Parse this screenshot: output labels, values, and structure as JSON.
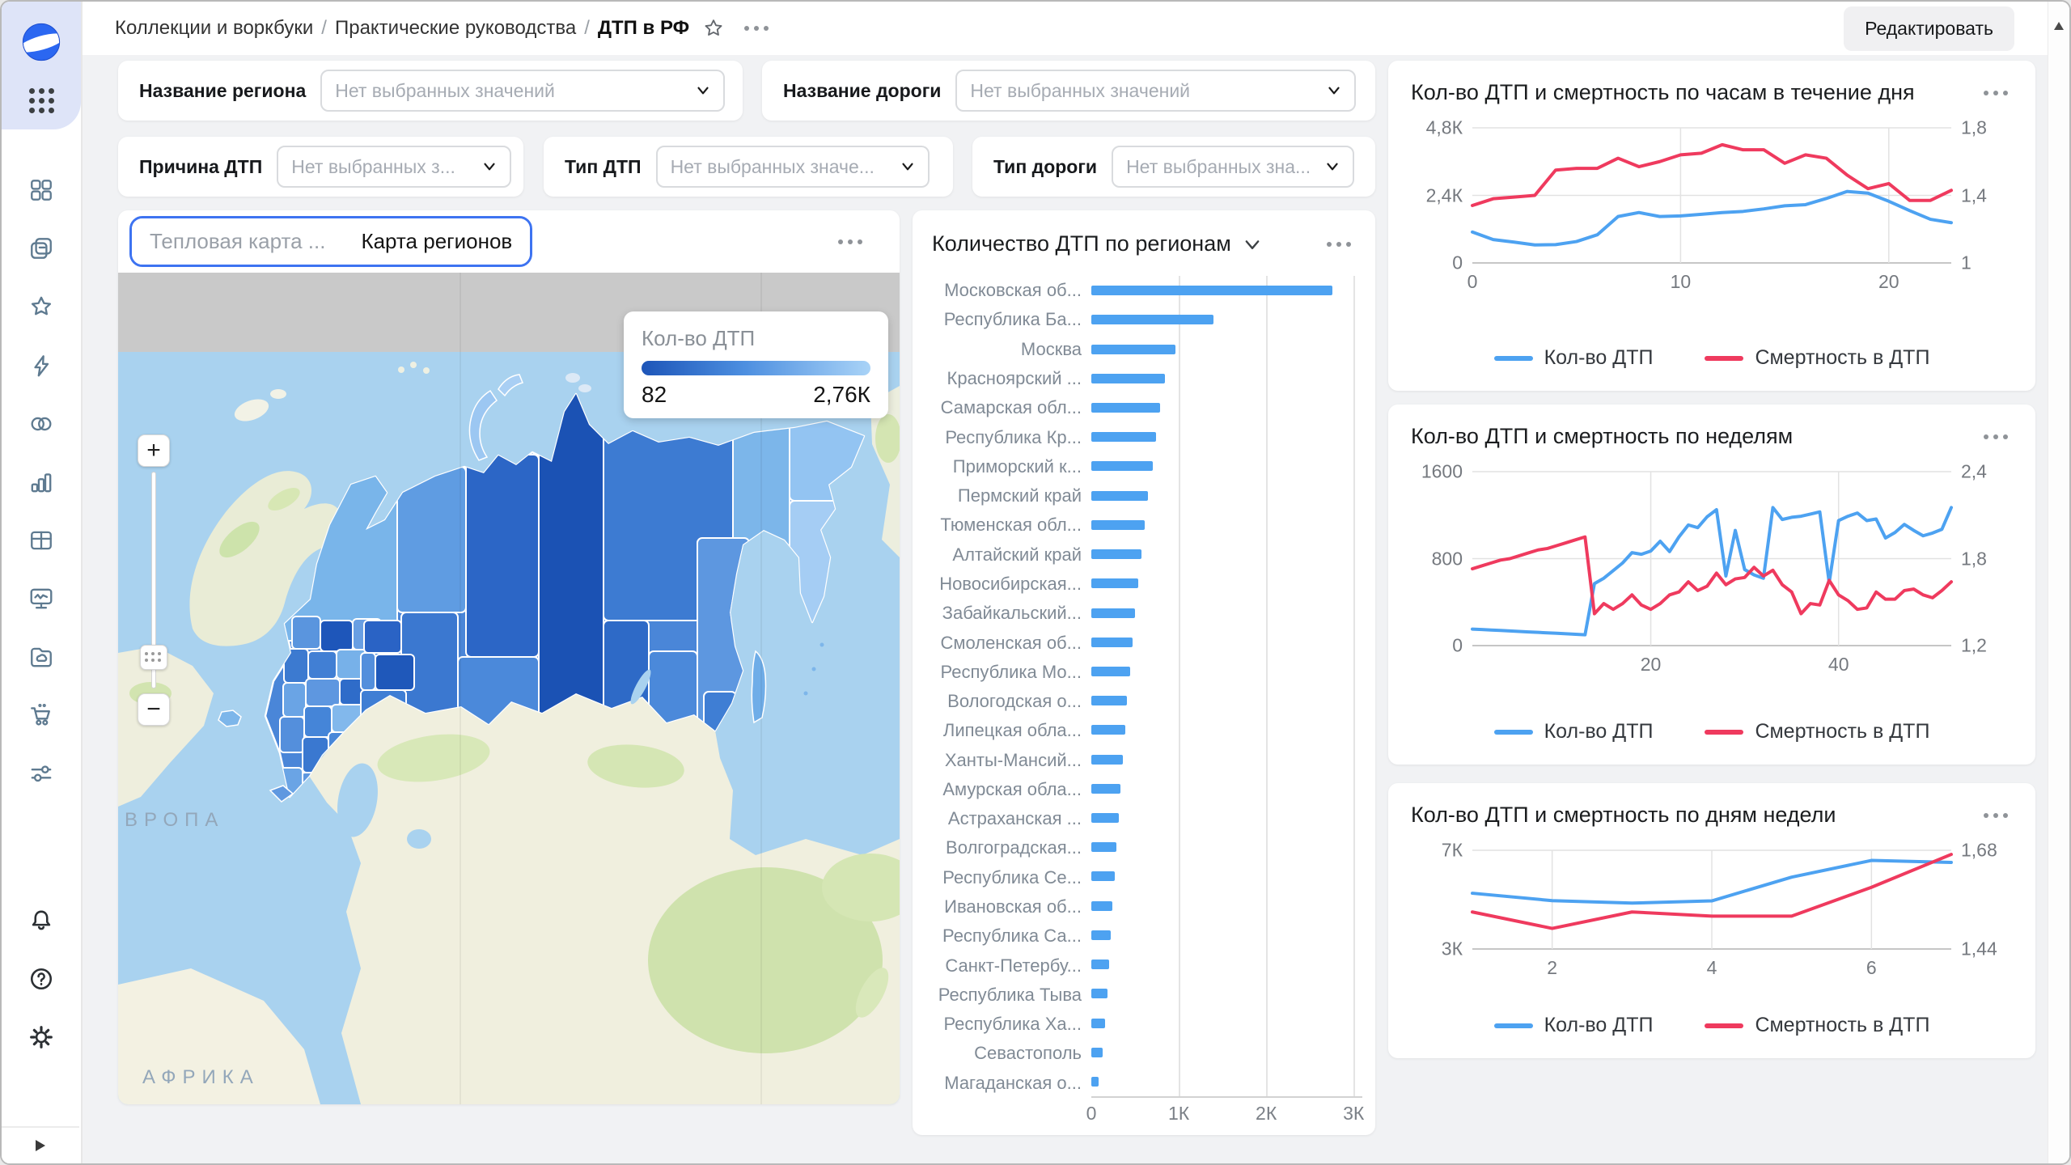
{
  "header": {
    "breadcrumb": [
      "Коллекции и воркбуки",
      "Практические руководства",
      "ДТП в РФ"
    ],
    "separator": "/",
    "edit_button": "Редактировать",
    "icons": [
      "star-icon",
      "more-options-icon"
    ]
  },
  "sidebar": {
    "icons": [
      "datalens-logo",
      "apps-grid-icon",
      "dashboard-icon",
      "collections-icon",
      "favorites-star-icon",
      "lightning-icon",
      "connections-icon",
      "charts-icon",
      "table-icon",
      "monitor-icon",
      "storage-folder-icon",
      "marketplace-cart-icon",
      "services-sliders-icon",
      "bell-icon",
      "help-icon",
      "settings-gear-icon",
      "expand-icon"
    ]
  },
  "filters": [
    {
      "label": "Название региона",
      "placeholder": "Нет выбранных значений"
    },
    {
      "label": "Название дороги",
      "placeholder": "Нет выбранных значений"
    },
    {
      "label": "Причина ДТП",
      "placeholder": "Нет выбранных з..."
    },
    {
      "label": "Тип ДТП",
      "placeholder": "Нет выбранных значе..."
    },
    {
      "label": "Тип дороги",
      "placeholder": "Нет выбранных зна..."
    }
  ],
  "map": {
    "tabs": [
      {
        "label": "Тепловая карта ...",
        "active": false
      },
      {
        "label": "Карта регионов",
        "active": true
      }
    ],
    "legend": {
      "title": "Кол-во ДТП",
      "min": "82",
      "max": "2,76К",
      "gradient": [
        "#1d55b8",
        "#4d8fe0",
        "#a9d3f7"
      ]
    },
    "labels": {
      "europe": "ЕВРОПА",
      "africa": "АФРИКА"
    },
    "controls": {
      "zoom_in": "+",
      "zoom_out": "−"
    }
  },
  "colors": {
    "accent": "#3d73f1",
    "blue": "#4da2f1",
    "red": "#ef3a5e"
  },
  "chart_data": [
    {
      "type": "bar",
      "orientation": "horizontal",
      "title": "Количество ДТП по регионам",
      "categories": [
        "Московская об...",
        "Республика Ба...",
        "Москва",
        "Красноярский ...",
        "Самарская обл...",
        "Республика Кр...",
        "Приморский к...",
        "Пермский край",
        "Тюменская обл...",
        "Алтайский край",
        "Новосибирская...",
        "Забайкальский...",
        "Смоленская об...",
        "Республика Мо...",
        "Вологодская о...",
        "Липецкая обла...",
        "Ханты-Мансий...",
        "Амурская обла...",
        "Астраханская ...",
        "Волгоградская...",
        "Республика Се...",
        "Ивановская об...",
        "Республика Са...",
        "Санкт-Петербу...",
        "Республика Тыва",
        "Республика Ха...",
        "Севастополь",
        "Магаданская о..."
      ],
      "values": [
        2760,
        1400,
        960,
        840,
        790,
        740,
        700,
        650,
        610,
        570,
        540,
        500,
        470,
        440,
        410,
        385,
        360,
        335,
        310,
        290,
        265,
        245,
        225,
        205,
        185,
        160,
        130,
        82
      ],
      "x_ticks": [
        {
          "value": 0,
          "label": "0"
        },
        {
          "value": 1000,
          "label": "1К"
        },
        {
          "value": 2000,
          "label": "2К"
        },
        {
          "value": 3000,
          "label": "3К"
        }
      ],
      "xlim": [
        0,
        3100
      ],
      "bar_color": "#4da2f1",
      "grid": true
    },
    {
      "type": "line",
      "title": "Кол-во ДТП и смертность по часам в течение дня",
      "x_domain": [
        0,
        23
      ],
      "x_ticks": [
        {
          "value": 0,
          "label": "0"
        },
        {
          "value": 10,
          "label": "10"
        },
        {
          "value": 20,
          "label": "20"
        }
      ],
      "x_grid": [
        10,
        20
      ],
      "left_axis": {
        "min": 0,
        "max": 4800,
        "ticks": [
          "4,8К",
          "2,4К",
          "0"
        ]
      },
      "right_axis": {
        "min": 1,
        "max": 1.8,
        "ticks": [
          "1,8",
          "1,4",
          "1"
        ]
      },
      "series": [
        {
          "name": "Кол-во ДТП",
          "axis": "left",
          "color": "#4da2f1",
          "values": [
            1100,
            830,
            740,
            640,
            650,
            760,
            1000,
            1650,
            1790,
            1650,
            1670,
            1730,
            1790,
            1830,
            1920,
            2030,
            2070,
            2290,
            2540,
            2480,
            2190,
            1860,
            1550,
            1430
          ]
        },
        {
          "name": "Смертность в ДТП",
          "axis": "right",
          "color": "#ef3a5e",
          "values": [
            1.34,
            1.38,
            1.39,
            1.4,
            1.55,
            1.56,
            1.56,
            1.62,
            1.57,
            1.6,
            1.64,
            1.65,
            1.7,
            1.67,
            1.67,
            1.59,
            1.64,
            1.62,
            1.52,
            1.44,
            1.47,
            1.37,
            1.37,
            1.43
          ]
        }
      ],
      "legend_position": "bottom"
    },
    {
      "type": "line",
      "title": "Кол-во ДТП и смертность по неделям",
      "x_domain": [
        1,
        52
      ],
      "x_ticks": [
        {
          "value": 20,
          "label": "20"
        },
        {
          "value": 40,
          "label": "40"
        }
      ],
      "x_grid": [
        20,
        40
      ],
      "left_axis": {
        "min": 0,
        "max": 1600,
        "ticks": [
          "1600",
          "800",
          "0"
        ]
      },
      "right_axis": {
        "min": 1.2,
        "max": 2.4,
        "ticks": [
          "2,4",
          "1,8",
          "1,2"
        ]
      },
      "series": [
        {
          "name": "Кол-во ДТП",
          "axis": "left",
          "color": "#4da2f1",
          "values": [
            152,
            148,
            143,
            139,
            135,
            130,
            126,
            122,
            117,
            113,
            109,
            104,
            100,
            570,
            620,
            690,
            760,
            855,
            840,
            870,
            960,
            865,
            1000,
            1110,
            1085,
            1185,
            1250,
            640,
            1060,
            700,
            650,
            620,
            1270,
            1160,
            1180,
            1190,
            1210,
            1230,
            580,
            1150,
            1190,
            1220,
            1150,
            1165,
            990,
            1040,
            1115,
            1060,
            1010,
            1035,
            1070,
            1270
          ]
        },
        {
          "name": "Смертность в ДТП",
          "axis": "right",
          "color": "#ef3a5e",
          "values": [
            1.73,
            1.75,
            1.77,
            1.79,
            1.8,
            1.82,
            1.84,
            1.86,
            1.87,
            1.89,
            1.91,
            1.93,
            1.95,
            1.42,
            1.49,
            1.45,
            1.49,
            1.55,
            1.48,
            1.45,
            1.49,
            1.55,
            1.57,
            1.64,
            1.58,
            1.61,
            1.7,
            1.62,
            1.66,
            1.67,
            1.74,
            1.68,
            1.72,
            1.62,
            1.57,
            1.42,
            1.49,
            1.48,
            1.65,
            1.55,
            1.51,
            1.45,
            1.46,
            1.57,
            1.52,
            1.52,
            1.58,
            1.59,
            1.55,
            1.53,
            1.58,
            1.64
          ]
        }
      ],
      "legend_position": "bottom"
    },
    {
      "type": "line",
      "title": "Кол-во ДТП и смертность по дням недели",
      "x_domain": [
        1,
        7
      ],
      "x_ticks": [
        {
          "value": 2,
          "label": "2"
        },
        {
          "value": 4,
          "label": "4"
        },
        {
          "value": 6,
          "label": "6"
        }
      ],
      "x_grid": [
        2,
        4,
        6
      ],
      "left_axis": {
        "min": 3000,
        "max": 7000,
        "ticks": [
          "7К",
          "3К"
        ]
      },
      "right_axis": {
        "min": 1.44,
        "max": 1.68,
        "ticks": [
          "1,68",
          "1,44"
        ]
      },
      "series": [
        {
          "name": "Кол-во ДТП",
          "axis": "left",
          "color": "#4da2f1",
          "values": [
            5260,
            4960,
            4860,
            4950,
            5910,
            6590,
            6510
          ]
        },
        {
          "name": "Смертность в ДТП",
          "axis": "right",
          "color": "#ef3a5e",
          "values": [
            1.53,
            1.49,
            1.53,
            1.52,
            1.52,
            1.59,
            1.67
          ]
        }
      ],
      "legend_position": "bottom"
    }
  ]
}
